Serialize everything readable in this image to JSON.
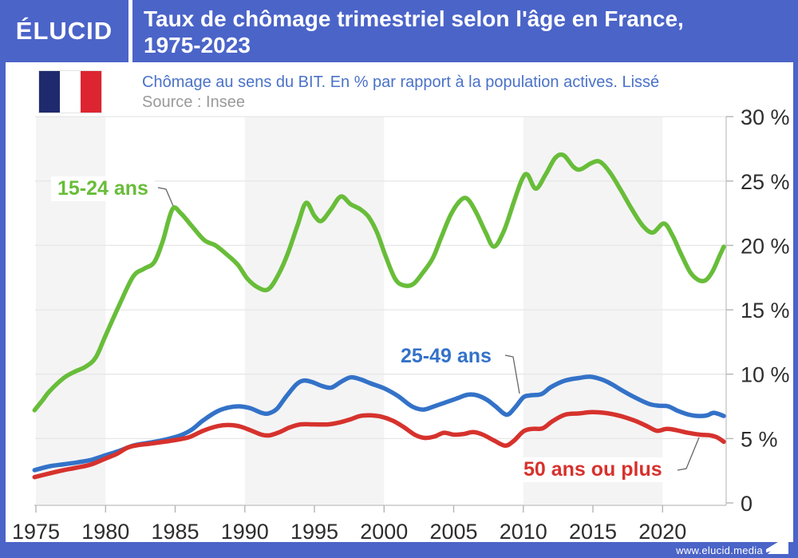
{
  "header": {
    "logo_text": "ÉLUCID",
    "title_line1": "Taux de chômage trimestriel selon l'âge en France,",
    "title_line2": "1975-2023"
  },
  "subtitle": {
    "line1": "Chômage au sens du BIT. En % par rapport à la population actives. Lissé",
    "source": "Source : Insee"
  },
  "footer": {
    "url": "www.elucid.media"
  },
  "colors": {
    "brand_blue": "#4b64c8",
    "series_green": "#68bd39",
    "series_blue": "#3372c8",
    "series_red": "#d6322d",
    "stripe_gray": "#f4f4f4",
    "gridline": "#e7e7e7",
    "axis_line": "#c8c8c8",
    "tick_mark": "#b5b5b5",
    "tick_text": "#2d2d2d",
    "flag_navy": "#1f2a6e",
    "flag_red": "#dc2530"
  },
  "chart_data": {
    "type": "line",
    "title": "Taux de chômage trimestriel selon l'âge en France, 1975-2023",
    "xlabel": "",
    "ylabel": "%",
    "x_range": [
      1975,
      2024.4
    ],
    "ylim": [
      0,
      30
    ],
    "grid": true,
    "legend_position": "inline-annotations",
    "x_ticks": [
      {
        "v": 1975,
        "label": "1975"
      },
      {
        "v": 1980,
        "label": "1980"
      },
      {
        "v": 1985,
        "label": "1985"
      },
      {
        "v": 1990,
        "label": "1990"
      },
      {
        "v": 1995,
        "label": "1995"
      },
      {
        "v": 2000,
        "label": "2000"
      },
      {
        "v": 2005,
        "label": "2005"
      },
      {
        "v": 2010,
        "label": "2010"
      },
      {
        "v": 2015,
        "label": "2015"
      },
      {
        "v": 2020,
        "label": "2020"
      }
    ],
    "y_ticks": [
      {
        "v": 0,
        "label": "0"
      },
      {
        "v": 5,
        "label": "5 %"
      },
      {
        "v": 10,
        "label": "10 %"
      },
      {
        "v": 15,
        "label": "15 %"
      },
      {
        "v": 20,
        "label": "20 %"
      },
      {
        "v": 25,
        "label": "25 %"
      },
      {
        "v": 30,
        "label": "30 %"
      }
    ],
    "decade_bands": [
      [
        1975,
        1980
      ],
      [
        1990,
        2000
      ],
      [
        2010,
        2020
      ]
    ],
    "series": [
      {
        "name": "15-24 ans",
        "color": "#68bd39",
        "points": [
          [
            1974.9,
            7.2
          ],
          [
            1975.5,
            8.0
          ],
          [
            1976,
            8.7
          ],
          [
            1977,
            9.7
          ],
          [
            1977.8,
            10.2
          ],
          [
            1978.6,
            10.6
          ],
          [
            1979.3,
            11.3
          ],
          [
            1980,
            13.0
          ],
          [
            1981,
            15.4
          ],
          [
            1982,
            17.6
          ],
          [
            1982.8,
            18.2
          ],
          [
            1983.5,
            18.7
          ],
          [
            1984.1,
            20.3
          ],
          [
            1984.8,
            22.8
          ],
          [
            1985.4,
            22.5
          ],
          [
            1986.2,
            21.5
          ],
          [
            1987.1,
            20.4
          ],
          [
            1987.9,
            20.0
          ],
          [
            1988.7,
            19.3
          ],
          [
            1989.5,
            18.5
          ],
          [
            1990.2,
            17.4
          ],
          [
            1991,
            16.7
          ],
          [
            1991.7,
            16.6
          ],
          [
            1992.4,
            17.7
          ],
          [
            1993.1,
            19.4
          ],
          [
            1993.8,
            21.6
          ],
          [
            1994.4,
            23.3
          ],
          [
            1995,
            22.3
          ],
          [
            1995.5,
            21.9
          ],
          [
            1996.2,
            22.8
          ],
          [
            1996.9,
            23.8
          ],
          [
            1997.6,
            23.2
          ],
          [
            1998.3,
            22.8
          ],
          [
            1998.9,
            22.2
          ],
          [
            1999.5,
            21.0
          ],
          [
            2000.1,
            19.2
          ],
          [
            2000.8,
            17.4
          ],
          [
            2001.4,
            16.9
          ],
          [
            2002.1,
            17.0
          ],
          [
            2002.8,
            17.9
          ],
          [
            2003.5,
            19.0
          ],
          [
            2004.1,
            20.6
          ],
          [
            2004.8,
            22.4
          ],
          [
            2005.5,
            23.5
          ],
          [
            2006,
            23.6
          ],
          [
            2006.6,
            22.6
          ],
          [
            2007.3,
            21.0
          ],
          [
            2007.9,
            19.9
          ],
          [
            2008.6,
            21.1
          ],
          [
            2009.3,
            23.3
          ],
          [
            2009.9,
            25.1
          ],
          [
            2010.3,
            25.5
          ],
          [
            2010.9,
            24.4
          ],
          [
            2011.6,
            25.5
          ],
          [
            2012.3,
            26.8
          ],
          [
            2012.9,
            27.0
          ],
          [
            2013.6,
            26.1
          ],
          [
            2014.1,
            25.9
          ],
          [
            2014.9,
            26.4
          ],
          [
            2015.5,
            26.5
          ],
          [
            2016.2,
            25.7
          ],
          [
            2017,
            24.3
          ],
          [
            2017.8,
            22.8
          ],
          [
            2018.6,
            21.5
          ],
          [
            2019.3,
            21.0
          ],
          [
            2020.1,
            21.7
          ],
          [
            2020.7,
            20.8
          ],
          [
            2021.3,
            19.4
          ],
          [
            2022,
            17.9
          ],
          [
            2022.6,
            17.3
          ],
          [
            2023.1,
            17.3
          ],
          [
            2023.6,
            18.0
          ],
          [
            2024.1,
            19.2
          ],
          [
            2024.4,
            19.9
          ]
        ]
      },
      {
        "name": "25-49 ans",
        "color": "#3372c8",
        "points": [
          [
            1974.9,
            2.55
          ],
          [
            1976,
            2.85
          ],
          [
            1977,
            3.0
          ],
          [
            1978,
            3.15
          ],
          [
            1979,
            3.35
          ],
          [
            1980,
            3.7
          ],
          [
            1981,
            4.05
          ],
          [
            1982,
            4.45
          ],
          [
            1983,
            4.65
          ],
          [
            1983.8,
            4.8
          ],
          [
            1984.6,
            5.0
          ],
          [
            1985.4,
            5.25
          ],
          [
            1986.2,
            5.7
          ],
          [
            1987,
            6.4
          ],
          [
            1988,
            7.1
          ],
          [
            1988.8,
            7.4
          ],
          [
            1989.6,
            7.5
          ],
          [
            1990.4,
            7.35
          ],
          [
            1991.2,
            7.0
          ],
          [
            1991.7,
            6.95
          ],
          [
            1992.3,
            7.3
          ],
          [
            1993,
            8.3
          ],
          [
            1993.7,
            9.2
          ],
          [
            1994.2,
            9.5
          ],
          [
            1994.8,
            9.4
          ],
          [
            1995.5,
            9.1
          ],
          [
            1996.2,
            8.95
          ],
          [
            1996.9,
            9.4
          ],
          [
            1997.6,
            9.75
          ],
          [
            1998.3,
            9.6
          ],
          [
            1999,
            9.3
          ],
          [
            2000,
            8.9
          ],
          [
            2001,
            8.3
          ],
          [
            2002,
            7.5
          ],
          [
            2002.8,
            7.25
          ],
          [
            2003.6,
            7.5
          ],
          [
            2004.4,
            7.8
          ],
          [
            2005.2,
            8.1
          ],
          [
            2006,
            8.4
          ],
          [
            2006.7,
            8.35
          ],
          [
            2007.4,
            8.0
          ],
          [
            2008,
            7.5
          ],
          [
            2008.8,
            6.85
          ],
          [
            2009.4,
            7.4
          ],
          [
            2010,
            8.2
          ],
          [
            2010.5,
            8.35
          ],
          [
            2011.3,
            8.45
          ],
          [
            2012,
            9.0
          ],
          [
            2013,
            9.5
          ],
          [
            2014,
            9.7
          ],
          [
            2014.8,
            9.8
          ],
          [
            2015.6,
            9.6
          ],
          [
            2016.3,
            9.25
          ],
          [
            2017,
            8.8
          ],
          [
            2018,
            8.2
          ],
          [
            2019,
            7.7
          ],
          [
            2019.7,
            7.55
          ],
          [
            2020.4,
            7.5
          ],
          [
            2021.1,
            7.15
          ],
          [
            2021.9,
            6.85
          ],
          [
            2022.6,
            6.75
          ],
          [
            2023.2,
            6.8
          ],
          [
            2023.7,
            7.0
          ],
          [
            2024.4,
            6.75
          ]
        ]
      },
      {
        "name": "50 ans ou plus",
        "color": "#d6322d",
        "points": [
          [
            1974.9,
            2.0
          ],
          [
            1976,
            2.3
          ],
          [
            1977,
            2.55
          ],
          [
            1978,
            2.75
          ],
          [
            1979,
            3.0
          ],
          [
            1980,
            3.45
          ],
          [
            1980.8,
            3.8
          ],
          [
            1981.6,
            4.3
          ],
          [
            1982.4,
            4.5
          ],
          [
            1983.2,
            4.6
          ],
          [
            1984.2,
            4.75
          ],
          [
            1985.1,
            4.9
          ],
          [
            1986,
            5.1
          ],
          [
            1987,
            5.6
          ],
          [
            1988,
            5.95
          ],
          [
            1988.8,
            6.05
          ],
          [
            1989.6,
            5.95
          ],
          [
            1990.4,
            5.65
          ],
          [
            1991.2,
            5.3
          ],
          [
            1991.8,
            5.25
          ],
          [
            1992.5,
            5.5
          ],
          [
            1993.2,
            5.85
          ],
          [
            1994,
            6.1
          ],
          [
            1995,
            6.1
          ],
          [
            1996,
            6.1
          ],
          [
            1996.8,
            6.25
          ],
          [
            1997.6,
            6.5
          ],
          [
            1998.3,
            6.75
          ],
          [
            1999,
            6.8
          ],
          [
            1999.8,
            6.7
          ],
          [
            2000.6,
            6.4
          ],
          [
            2001.4,
            5.9
          ],
          [
            2002.2,
            5.3
          ],
          [
            2002.9,
            5.05
          ],
          [
            2003.6,
            5.15
          ],
          [
            2004.3,
            5.45
          ],
          [
            2005,
            5.3
          ],
          [
            2005.7,
            5.35
          ],
          [
            2006.4,
            5.5
          ],
          [
            2007.1,
            5.3
          ],
          [
            2007.9,
            4.85
          ],
          [
            2008.7,
            4.45
          ],
          [
            2009.3,
            4.8
          ],
          [
            2010,
            5.55
          ],
          [
            2010.6,
            5.75
          ],
          [
            2011.4,
            5.8
          ],
          [
            2012.1,
            6.35
          ],
          [
            2013,
            6.85
          ],
          [
            2014,
            6.95
          ],
          [
            2014.9,
            7.05
          ],
          [
            2015.8,
            7.0
          ],
          [
            2016.6,
            6.85
          ],
          [
            2017.3,
            6.65
          ],
          [
            2018.1,
            6.35
          ],
          [
            2018.9,
            5.95
          ],
          [
            2019.6,
            5.6
          ],
          [
            2020.3,
            5.75
          ],
          [
            2021,
            5.65
          ],
          [
            2021.8,
            5.45
          ],
          [
            2022.7,
            5.3
          ],
          [
            2023.4,
            5.25
          ],
          [
            2023.9,
            5.1
          ],
          [
            2024.4,
            4.75
          ]
        ]
      }
    ]
  }
}
